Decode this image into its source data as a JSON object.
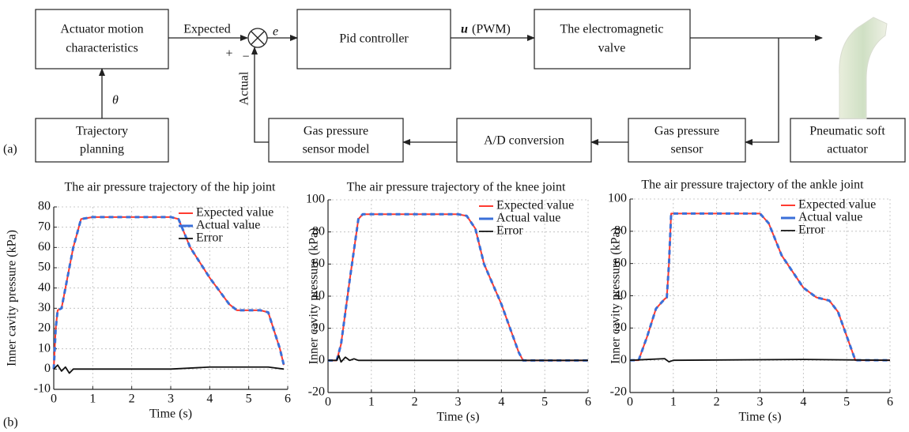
{
  "diagram": {
    "nodes": [
      {
        "label": [
          "Actuator motion",
          "characteristics"
        ]
      },
      {
        "label": [
          "Pid controller"
        ]
      },
      {
        "label": [
          "The electromagnetic",
          "valve"
        ]
      },
      {
        "label": [
          "Trajectory",
          "planning"
        ]
      },
      {
        "label": [
          "Gas pressure",
          "sensor model"
        ]
      },
      {
        "label": [
          "A/D conversion"
        ]
      },
      {
        "label": [
          "Gas pressure",
          "sensor"
        ]
      },
      {
        "label": [
          "Pneumatic soft",
          "actuator"
        ]
      }
    ],
    "signals": {
      "expected": "Expected",
      "error": "e",
      "plus": "+",
      "minus": "−",
      "actual": "Actual",
      "theta": "θ",
      "control_symbol": "u",
      "control_text": "(PWM)"
    }
  },
  "panel_labels": [
    "(a)",
    "(b)"
  ],
  "chart_data": [
    {
      "type": "line",
      "title": "The air pressure trajectory of the hip joint",
      "x_label": "Time (s)",
      "y_label": "Inner cavity pressure (kPa)",
      "x": [
        0,
        0.05,
        0.1,
        0.2,
        0.3,
        0.5,
        0.7,
        1,
        2,
        3,
        3.2,
        3.5,
        4,
        4.5,
        4.7,
        5,
        5.3,
        5.5,
        5.8,
        5.9
      ],
      "series": [
        {
          "name": "Expected value",
          "color": "#ff3b30",
          "values": [
            0,
            20,
            29,
            30,
            40,
            60,
            74,
            75,
            75,
            75,
            74,
            60,
            45,
            32,
            29,
            29,
            29,
            28,
            10,
            2
          ]
        },
        {
          "name": "Actual value",
          "color": "#3a6fd8",
          "dashed": true,
          "values": [
            0,
            20,
            29,
            30,
            40,
            60,
            74,
            75,
            75,
            75,
            74,
            60,
            45,
            32,
            29,
            29,
            29,
            28,
            10,
            2
          ]
        },
        {
          "name": "Error",
          "color": "#111111",
          "x": [
            0,
            0.1,
            0.2,
            0.3,
            0.4,
            0.5,
            1,
            2,
            3,
            4,
            5,
            5.5,
            5.9
          ],
          "values": [
            0,
            2,
            -1,
            1,
            -2,
            0,
            0,
            0,
            0,
            1,
            1,
            1,
            0
          ]
        }
      ],
      "xlim": [
        0,
        6
      ],
      "xticks": [
        0,
        1,
        2,
        3,
        4,
        5,
        6
      ],
      "ylim": [
        -10,
        80
      ],
      "yticks": [
        -10,
        0,
        10,
        20,
        30,
        40,
        50,
        60,
        70,
        80
      ],
      "grid": true,
      "legend": "upper right"
    },
    {
      "type": "line",
      "title": "The air pressure trajectory of the knee joint",
      "x_label": "Time (s)",
      "y_label": "Inner cavity pressure (kPa)",
      "x": [
        0,
        0.2,
        0.3,
        0.5,
        0.7,
        0.8,
        1,
        2,
        3,
        3.2,
        3.4,
        3.6,
        4,
        4.4,
        4.5,
        5,
        6
      ],
      "series": [
        {
          "name": "Expected value",
          "color": "#ff3b30",
          "values": [
            0,
            0,
            10,
            50,
            88,
            91,
            91,
            91,
            91,
            90,
            82,
            60,
            35,
            5,
            0,
            0,
            0
          ]
        },
        {
          "name": "Actual value",
          "color": "#3a6fd8",
          "dashed": true,
          "values": [
            0,
            0,
            10,
            50,
            88,
            91,
            91,
            91,
            91,
            90,
            82,
            60,
            35,
            5,
            0,
            0,
            0
          ]
        },
        {
          "name": "Error",
          "color": "#111111",
          "x": [
            0,
            0.2,
            0.25,
            0.3,
            0.4,
            0.5,
            0.6,
            0.7,
            6
          ],
          "values": [
            0,
            0,
            3,
            -1,
            2,
            0,
            1,
            0,
            0
          ]
        }
      ],
      "xlim": [
        0,
        6
      ],
      "xticks": [
        0,
        1,
        2,
        3,
        4,
        5,
        6
      ],
      "ylim": [
        -20,
        100
      ],
      "yticks": [
        -20,
        0,
        20,
        40,
        60,
        80,
        100
      ],
      "grid": true,
      "legend": "upper right"
    },
    {
      "type": "line",
      "title": "The air pressure trajectory of the ankle joint",
      "x_label": "Time (s)",
      "y_label": "Inner cavity pressure (kPa)",
      "x": [
        0,
        0.2,
        0.4,
        0.6,
        0.8,
        0.85,
        0.9,
        0.95,
        1,
        2,
        3,
        3.2,
        3.5,
        4,
        4.3,
        4.6,
        4.8,
        5,
        5.2,
        6
      ],
      "series": [
        {
          "name": "Expected value",
          "color": "#ff3b30",
          "values": [
            0,
            0,
            15,
            32,
            38,
            39,
            60,
            91,
            91,
            91,
            91,
            85,
            65,
            45,
            39,
            37,
            30,
            15,
            0,
            0
          ]
        },
        {
          "name": "Actual value",
          "color": "#3a6fd8",
          "dashed": true,
          "values": [
            0,
            0,
            15,
            32,
            38,
            39,
            60,
            91,
            91,
            91,
            91,
            85,
            65,
            45,
            39,
            37,
            30,
            15,
            0,
            0
          ]
        },
        {
          "name": "Error",
          "color": "#111111",
          "x": [
            0,
            0.8,
            0.9,
            1,
            4,
            6
          ],
          "values": [
            0,
            1,
            -1,
            0,
            0.5,
            0
          ]
        }
      ],
      "xlim": [
        0,
        6
      ],
      "xticks": [
        0,
        1,
        2,
        3,
        4,
        5,
        6
      ],
      "ylim": [
        -20,
        100
      ],
      "yticks": [
        -20,
        0,
        20,
        40,
        60,
        80,
        100
      ],
      "grid": true,
      "legend": "upper right"
    }
  ]
}
